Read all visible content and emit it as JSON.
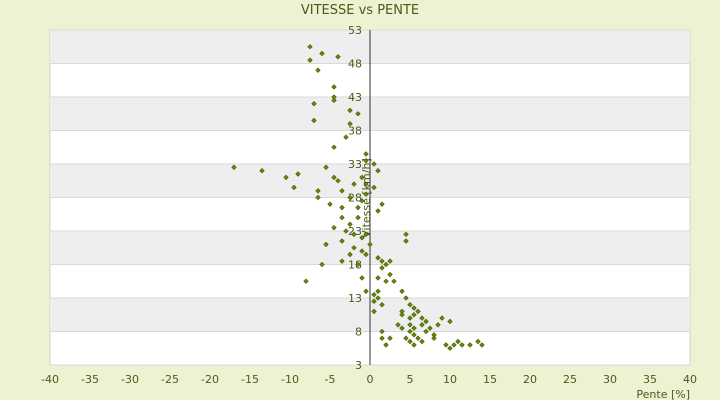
{
  "chart_data": {
    "type": "scatter",
    "title": "VITESSE vs PENTE",
    "xlabel": "Pente [%]",
    "ylabel": "Vitesse [km/h]",
    "xlim": [
      -40,
      40
    ],
    "ylim": [
      3,
      53
    ],
    "xticks": [
      -40,
      -35,
      -30,
      -25,
      -20,
      -15,
      -10,
      -5,
      0,
      5,
      10,
      15,
      20,
      25,
      30,
      35,
      40
    ],
    "yticks": [
      3,
      8,
      13,
      18,
      23,
      28,
      33,
      38,
      43,
      48,
      53
    ],
    "grid": true,
    "alternating_bands": true,
    "marker_color": "#6b8e00",
    "points": [
      [
        -7.5,
        50.5
      ],
      [
        -6,
        49.5
      ],
      [
        -4,
        49
      ],
      [
        -7.5,
        48.5
      ],
      [
        -6.5,
        47
      ],
      [
        -4.5,
        44.5
      ],
      [
        -4.5,
        43
      ],
      [
        -4.5,
        42.5
      ],
      [
        -7,
        42
      ],
      [
        -2.5,
        41
      ],
      [
        -1.5,
        40.5
      ],
      [
        -7,
        39.5
      ],
      [
        -2.5,
        39
      ],
      [
        -3,
        37
      ],
      [
        -4.5,
        35.5
      ],
      [
        -0.5,
        34.5
      ],
      [
        -17,
        32.5
      ],
      [
        -13.5,
        32
      ],
      [
        -10.5,
        31
      ],
      [
        -9,
        31.5
      ],
      [
        -5.5,
        32.5
      ],
      [
        -0.5,
        33.5
      ],
      [
        0.5,
        33
      ],
      [
        1,
        32
      ],
      [
        -9.5,
        29.5
      ],
      [
        -6.5,
        29
      ],
      [
        -4.5,
        31
      ],
      [
        -4,
        30.5
      ],
      [
        -3.5,
        29
      ],
      [
        -2,
        30
      ],
      [
        -1,
        31
      ],
      [
        -0.5,
        30
      ],
      [
        0.5,
        29.5
      ],
      [
        -6.5,
        28
      ],
      [
        -5,
        27
      ],
      [
        -3.5,
        26.5
      ],
      [
        -2.5,
        28
      ],
      [
        -1.5,
        26.5
      ],
      [
        -1,
        27.5
      ],
      [
        -0.5,
        28.5
      ],
      [
        -3.5,
        25
      ],
      [
        -2.5,
        24
      ],
      [
        -1.5,
        25
      ],
      [
        1,
        26
      ],
      [
        1.5,
        27
      ],
      [
        -4.5,
        23.5
      ],
      [
        -3,
        23
      ],
      [
        -2,
        22.5
      ],
      [
        -1,
        22
      ],
      [
        -0.5,
        22.5
      ],
      [
        0,
        21
      ],
      [
        -5.5,
        21
      ],
      [
        -3.5,
        21.5
      ],
      [
        -2,
        20.5
      ],
      [
        -1,
        20
      ],
      [
        -0.5,
        19.5
      ],
      [
        4.5,
        22.5
      ],
      [
        4.5,
        21.5
      ],
      [
        -2.5,
        19.5
      ],
      [
        -3.5,
        18.5
      ],
      [
        -1.5,
        18
      ],
      [
        -6,
        18
      ],
      [
        1,
        19
      ],
      [
        1.5,
        18.5
      ],
      [
        2,
        18
      ],
      [
        2.5,
        18.5
      ],
      [
        1.5,
        17.5
      ],
      [
        2.5,
        16.5
      ],
      [
        -8,
        15.5
      ],
      [
        -1,
        16
      ],
      [
        1,
        16
      ],
      [
        2,
        15.5
      ],
      [
        3,
        15.5
      ],
      [
        -0.5,
        14
      ],
      [
        0.5,
        13.5
      ],
      [
        1,
        14
      ],
      [
        1,
        13
      ],
      [
        4,
        14
      ],
      [
        4.5,
        13
      ],
      [
        0.5,
        12.5
      ],
      [
        1.5,
        12
      ],
      [
        5,
        12
      ],
      [
        5.5,
        11.5
      ],
      [
        0.5,
        11
      ],
      [
        4,
        11
      ],
      [
        6,
        11
      ],
      [
        4,
        10.5
      ],
      [
        5,
        10
      ],
      [
        5.5,
        10.5
      ],
      [
        6.5,
        10
      ],
      [
        7,
        9.5
      ],
      [
        9,
        10
      ],
      [
        3.5,
        9
      ],
      [
        4,
        8.5
      ],
      [
        5,
        9
      ],
      [
        5.5,
        8.5
      ],
      [
        6.5,
        9
      ],
      [
        7.5,
        8.5
      ],
      [
        8.5,
        9
      ],
      [
        10,
        9.5
      ],
      [
        1.5,
        8
      ],
      [
        5,
        8
      ],
      [
        5.5,
        7.5
      ],
      [
        7,
        8
      ],
      [
        8,
        7.5
      ],
      [
        1.5,
        7
      ],
      [
        2.5,
        7
      ],
      [
        4.5,
        7
      ],
      [
        6,
        7
      ],
      [
        6.5,
        6.5
      ],
      [
        8,
        7
      ],
      [
        2,
        6
      ],
      [
        5,
        6.5
      ],
      [
        5.5,
        6
      ],
      [
        9.5,
        6
      ],
      [
        10,
        5.5
      ],
      [
        10.5,
        6
      ],
      [
        11,
        6.5
      ],
      [
        11.5,
        6
      ],
      [
        12.5,
        6
      ],
      [
        13.5,
        6.5
      ],
      [
        14,
        6
      ]
    ]
  }
}
